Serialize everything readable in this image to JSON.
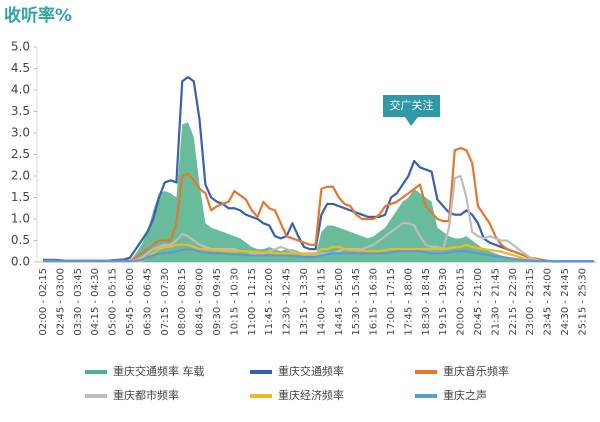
{
  "chart_data": {
    "type": "line",
    "title": "收听率%",
    "annotation": "交广关注",
    "categories": [
      "02:00 - 02:15",
      null,
      null,
      "02:45 - 03:00",
      null,
      null,
      "03:30 - 03:45",
      null,
      null,
      "04:15 - 04:30",
      null,
      null,
      "05:00 - 05:15",
      null,
      null,
      "05:45 - 06:00",
      null,
      null,
      "06:30 - 06:45",
      null,
      null,
      "07:15 - 07:30",
      null,
      null,
      "08:00 - 08:15",
      null,
      null,
      "08:45 - 09:00",
      null,
      null,
      "09:30 - 09:45",
      null,
      null,
      "10:15 - 10:30",
      null,
      null,
      "11:00 - 11:15",
      null,
      null,
      "11:45 - 12:00",
      null,
      null,
      "12:30 - 12:45",
      null,
      null,
      "13:15 - 13:30",
      null,
      null,
      "14:00 - 14:15",
      null,
      null,
      "14:45 - 15:00",
      null,
      null,
      "15:30 - 15:45",
      null,
      null,
      "16:15 - 16:30",
      null,
      null,
      "17:00 - 17:15",
      null,
      null,
      "17:45 - 18:00",
      null,
      null,
      "18:30 - 18:45",
      null,
      null,
      "19:15 - 19:30",
      null,
      null,
      "20:00 - 20:15",
      null,
      null,
      "20:45 - 21:00",
      null,
      null,
      "21:30 - 21:45",
      null,
      null,
      "22:15 - 22:30",
      null,
      null,
      "23:00 - 23:15",
      null,
      null,
      "23:45 - 24:00",
      null,
      null,
      "24:30 - 24:45",
      null,
      null,
      "25:15 - 25:30",
      null,
      null
    ],
    "ylim": [
      0,
      5
    ],
    "yticks": [
      {
        "value": 0,
        "label": "0.0"
      },
      {
        "value": 0.5,
        "label": "0.5"
      },
      {
        "value": 1,
        "label": "1.0"
      },
      {
        "value": 1.5,
        "label": "1.5"
      },
      {
        "value": 2,
        "label": "2.0"
      },
      {
        "value": 2.5,
        "label": "2.5"
      },
      {
        "value": 3,
        "label": "3.0"
      },
      {
        "value": 3.5,
        "label": "3.5"
      },
      {
        "value": 4,
        "label": "4.0"
      },
      {
        "value": 4.5,
        "label": "4.5"
      },
      {
        "value": 5,
        "label": "5.0"
      }
    ],
    "series": [
      {
        "name": "重庆交通频率 车载",
        "color": "#4fb08a",
        "area": true,
        "values": [
          0.02,
          0.02,
          0.02,
          0.02,
          0.02,
          0.02,
          0.02,
          0.02,
          0.02,
          0.02,
          0.02,
          0.02,
          0.02,
          0.02,
          0.02,
          0.02,
          0.2,
          0.4,
          0.7,
          1.2,
          1.6,
          1.65,
          1.6,
          1.5,
          3.2,
          3.25,
          2.9,
          1.8,
          0.9,
          0.8,
          0.75,
          0.7,
          0.65,
          0.6,
          0.55,
          0.45,
          0.35,
          0.3,
          0.3,
          0.35,
          0.3,
          0.25,
          0.3,
          0.3,
          0.25,
          0.2,
          0.15,
          0.15,
          0.7,
          0.85,
          0.85,
          0.8,
          0.75,
          0.7,
          0.65,
          0.6,
          0.55,
          0.6,
          0.7,
          0.8,
          1.0,
          1.2,
          1.4,
          1.5,
          1.7,
          1.6,
          1.5,
          1.4,
          0.8,
          0.7,
          0.6,
          0.55,
          0.55,
          0.6,
          0.5,
          0.4,
          0.3,
          0.25,
          0.2,
          0.15,
          0.1,
          0.08,
          0.05,
          0.03,
          0.02,
          0.02,
          0.02,
          0.02,
          0.02,
          0.02,
          0.02,
          0.02,
          0.02,
          0.02,
          0.02,
          0.02
        ]
      },
      {
        "name": "重庆交通频率",
        "color": "#3a5fb0",
        "values": [
          0.05,
          0.05,
          0.05,
          0.04,
          0.03,
          0.03,
          0.03,
          0.03,
          0.03,
          0.03,
          0.03,
          0.03,
          0.04,
          0.05,
          0.06,
          0.1,
          0.3,
          0.5,
          0.7,
          1.0,
          1.5,
          1.85,
          1.9,
          1.85,
          4.2,
          4.3,
          4.2,
          3.3,
          1.8,
          1.5,
          1.4,
          1.35,
          1.25,
          1.25,
          1.2,
          1.1,
          1.05,
          1.0,
          0.9,
          0.85,
          0.6,
          0.55,
          0.6,
          0.9,
          0.6,
          0.35,
          0.3,
          0.3,
          1.1,
          1.35,
          1.35,
          1.3,
          1.25,
          1.2,
          1.15,
          1.1,
          1.05,
          1.05,
          1.05,
          1.1,
          1.5,
          1.6,
          1.8,
          2.0,
          2.35,
          2.2,
          2.15,
          2.1,
          1.45,
          1.3,
          1.15,
          1.1,
          1.1,
          1.2,
          1.1,
          0.9,
          0.55,
          0.45,
          0.4,
          0.35,
          0.3,
          0.25,
          0.2,
          0.15,
          0.1,
          0.05,
          0.03,
          0.02,
          0.01,
          0.01,
          0.01,
          0.01,
          0.01,
          0.01,
          0.01,
          0.01
        ]
      },
      {
        "name": "重庆音乐频率",
        "color": "#e2782e",
        "values": [
          0.03,
          0.03,
          0.03,
          0.03,
          0.03,
          0.03,
          0.03,
          0.03,
          0.03,
          0.03,
          0.03,
          0.03,
          0.03,
          0.03,
          0.03,
          0.03,
          0.1,
          0.2,
          0.3,
          0.4,
          0.5,
          0.5,
          0.5,
          0.9,
          2.0,
          2.05,
          1.9,
          1.7,
          1.6,
          1.2,
          1.3,
          1.35,
          1.4,
          1.65,
          1.55,
          1.45,
          1.2,
          1.05,
          1.4,
          1.25,
          1.2,
          0.9,
          0.6,
          0.55,
          0.5,
          0.45,
          0.4,
          0.4,
          1.7,
          1.75,
          1.75,
          1.5,
          1.35,
          1.3,
          1.1,
          1.0,
          1.0,
          1.0,
          1.1,
          1.3,
          1.35,
          1.4,
          1.5,
          1.6,
          1.7,
          1.8,
          1.3,
          1.15,
          1.0,
          0.95,
          0.95,
          2.6,
          2.65,
          2.6,
          2.3,
          1.3,
          1.1,
          0.9,
          0.6,
          0.4,
          0.3,
          0.25,
          0.2,
          0.15,
          0.1,
          0.08,
          0.05,
          0.03,
          0.02,
          0.02,
          0.02,
          0.02,
          0.02,
          0.02,
          0.02,
          0.02
        ]
      },
      {
        "name": "重庆都市频率",
        "color": "#bdbdbd",
        "values": [
          0.02,
          0.02,
          0.02,
          0.02,
          0.02,
          0.02,
          0.02,
          0.02,
          0.02,
          0.02,
          0.02,
          0.02,
          0.02,
          0.02,
          0.02,
          0.02,
          0.05,
          0.1,
          0.2,
          0.3,
          0.35,
          0.4,
          0.4,
          0.5,
          0.65,
          0.6,
          0.5,
          0.4,
          0.35,
          0.3,
          0.3,
          0.3,
          0.3,
          0.3,
          0.25,
          0.25,
          0.2,
          0.2,
          0.2,
          0.25,
          0.3,
          0.35,
          0.3,
          0.25,
          0.2,
          0.15,
          0.15,
          0.15,
          0.2,
          0.2,
          0.2,
          0.25,
          0.3,
          0.3,
          0.3,
          0.3,
          0.35,
          0.4,
          0.5,
          0.6,
          0.7,
          0.8,
          0.9,
          0.9,
          0.85,
          0.6,
          0.4,
          0.35,
          0.35,
          0.3,
          0.8,
          1.95,
          2.0,
          1.5,
          0.7,
          0.6,
          0.55,
          0.6,
          0.55,
          0.5,
          0.5,
          0.4,
          0.3,
          0.2,
          0.1,
          0.05,
          0.02,
          0.02,
          0.02,
          0.02,
          0.02,
          0.02,
          0.02,
          0.02,
          0.02,
          0.02
        ]
      },
      {
        "name": "重庆经济频率",
        "color": "#f2b820",
        "values": [
          0.02,
          0.02,
          0.02,
          0.02,
          0.02,
          0.02,
          0.02,
          0.02,
          0.02,
          0.02,
          0.02,
          0.02,
          0.02,
          0.02,
          0.02,
          0.02,
          0.02,
          0.02,
          0.1,
          0.2,
          0.3,
          0.35,
          0.35,
          0.4,
          0.4,
          0.4,
          0.35,
          0.3,
          0.3,
          0.28,
          0.27,
          0.26,
          0.25,
          0.25,
          0.25,
          0.25,
          0.24,
          0.23,
          0.22,
          0.22,
          0.2,
          0.2,
          0.2,
          0.2,
          0.2,
          0.2,
          0.2,
          0.2,
          0.3,
          0.3,
          0.35,
          0.35,
          0.3,
          0.28,
          0.27,
          0.26,
          0.25,
          0.25,
          0.25,
          0.27,
          0.3,
          0.3,
          0.3,
          0.3,
          0.3,
          0.3,
          0.3,
          0.3,
          0.3,
          0.3,
          0.32,
          0.34,
          0.35,
          0.4,
          0.35,
          0.32,
          0.3,
          0.28,
          0.26,
          0.24,
          0.2,
          0.16,
          0.12,
          0.08,
          0.05,
          0.03,
          0.02,
          0.02,
          0.02,
          0.02,
          0.02,
          0.02,
          0.02,
          0.02,
          0.02,
          0.02
        ]
      },
      {
        "name": "重庆之声",
        "color": "#5b9bd5",
        "values": [
          0.02,
          0.02,
          0.02,
          0.02,
          0.02,
          0.02,
          0.02,
          0.02,
          0.02,
          0.02,
          0.02,
          0.02,
          0.02,
          0.02,
          0.02,
          0.02,
          0.03,
          0.05,
          0.1,
          0.15,
          0.2,
          0.2,
          0.22,
          0.25,
          0.28,
          0.3,
          0.28,
          0.25,
          0.22,
          0.2,
          0.2,
          0.2,
          0.18,
          0.18,
          0.17,
          0.16,
          0.15,
          0.15,
          0.15,
          0.15,
          0.15,
          0.15,
          0.15,
          0.14,
          0.13,
          0.12,
          0.12,
          0.12,
          0.15,
          0.18,
          0.2,
          0.2,
          0.2,
          0.2,
          0.2,
          0.2,
          0.2,
          0.2,
          0.2,
          0.2,
          0.22,
          0.25,
          0.25,
          0.25,
          0.25,
          0.25,
          0.22,
          0.2,
          0.2,
          0.2,
          0.22,
          0.25,
          0.25,
          0.25,
          0.22,
          0.2,
          0.18,
          0.16,
          0.14,
          0.12,
          0.1,
          0.08,
          0.06,
          0.04,
          0.03,
          0.02,
          0.02,
          0.02,
          0.02,
          0.02,
          0.02,
          0.02,
          0.02,
          0.02,
          0.02,
          0.02
        ]
      }
    ]
  }
}
